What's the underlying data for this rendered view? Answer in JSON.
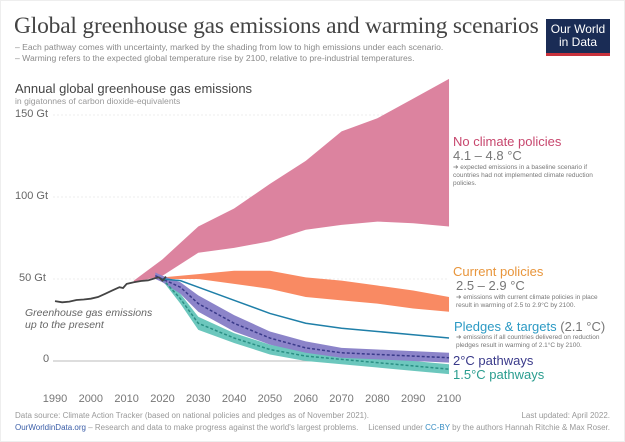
{
  "header": {
    "title": "Global greenhouse gas emissions and warming scenarios",
    "subtitle_1": "– Each pathway comes with uncertainty, marked by the shading from low to high emissions under each scenario.",
    "subtitle_2": "– Warming refers to the expected global temperature rise by 2100, relative to pre-industrial temperatures.",
    "logo_line1": "Our World",
    "logo_line2": "in Data"
  },
  "chart_data": {
    "type": "area",
    "ylabel": "Annual global greenhouse gas emissions",
    "yunit": "in gigatonnes of carbon dioxide-equivalents",
    "yticks": [
      "150 Gt",
      "100 Gt",
      "50 Gt",
      "0"
    ],
    "ytick_values": [
      150,
      100,
      50,
      0
    ],
    "xticks": [
      "1990",
      "2000",
      "2010",
      "2020",
      "2030",
      "2040",
      "2050",
      "2060",
      "2070",
      "2080",
      "2090",
      "2100"
    ],
    "xlim": [
      1990,
      2100
    ],
    "ylim": [
      -8,
      175
    ],
    "history": {
      "label": "Greenhouse gas emissions up to the present",
      "color": "#444444",
      "x": [
        1990,
        1992,
        1994,
        1996,
        1998,
        2000,
        2002,
        2004,
        2006,
        2008,
        2009,
        2010,
        2012,
        2014,
        2016,
        2018,
        2019,
        2020,
        2021
      ],
      "y": [
        36.5,
        35.8,
        36.2,
        37.2,
        37.5,
        38,
        39,
        41,
        43,
        45,
        44.5,
        47,
        48,
        48.8,
        49.2,
        50.5,
        51,
        49,
        51.5
      ]
    },
    "series": [
      {
        "name": "No climate policies",
        "temp": "4.1 – 4.8 °C",
        "note": "➔ expected emissions in a baseline scenario if countries had not implemented climate reduction policies.",
        "color": "#dc839f",
        "label_color": "#c7476e",
        "x": [
          2012,
          2020,
          2030,
          2040,
          2050,
          2060,
          2070,
          2080,
          2090,
          2100
        ],
        "high": [
          49,
          62,
          82,
          93,
          108,
          122,
          140,
          148,
          160,
          172
        ],
        "low": [
          48,
          52,
          66,
          69,
          73,
          80,
          83,
          85,
          84,
          82
        ]
      },
      {
        "name": "Current policies",
        "temp": "2.5 – 2.9 °C",
        "note": "➔ emissions with current climate policies in place result in warming of 2.5 to 2.9°C by 2100.",
        "color": "#f98a63",
        "label_color": "#e8953b",
        "x": [
          2020,
          2030,
          2040,
          2050,
          2060,
          2070,
          2080,
          2090,
          2100
        ],
        "high": [
          51,
          53,
          55,
          55,
          51,
          49,
          46,
          43,
          39
        ],
        "low": [
          50,
          50,
          47,
          44,
          39,
          37,
          35,
          32,
          30
        ]
      },
      {
        "name": "Pledges & targets",
        "temp": "(2.1 °C)",
        "note": "➔ emissions if all countries delivered on reduction pledges result in warming of 2.1°C by 2100.",
        "color": "#1f7fa8",
        "label_color": "#2c9ac4",
        "x": [
          2020,
          2025,
          2030,
          2040,
          2050,
          2060,
          2070,
          2080,
          2090,
          2100
        ],
        "y": [
          50,
          49,
          45,
          37,
          29,
          23,
          20,
          18,
          16,
          14
        ]
      },
      {
        "name": "2°C pathways",
        "color": "#8c84c9",
        "line_color": "#3a3a8a",
        "label_color": "#3a3a8a",
        "x": [
          2018,
          2020,
          2025,
          2030,
          2040,
          2050,
          2060,
          2070,
          2080,
          2090,
          2100
        ],
        "y": [
          52,
          50,
          45,
          35,
          23,
          14,
          8,
          5,
          4,
          3,
          2
        ],
        "high": [
          54,
          52,
          48,
          40,
          28,
          18,
          12,
          8,
          7,
          6,
          5
        ],
        "low": [
          50,
          48,
          41,
          30,
          18,
          10,
          5,
          2,
          1,
          0,
          -1
        ]
      },
      {
        "name": "1.5°C pathways",
        "color": "#6cc7bd",
        "line_color": "#2a8f84",
        "label_color": "#2a9d8f",
        "x": [
          2020,
          2025,
          2030,
          2040,
          2050,
          2060,
          2070,
          2080,
          2090,
          2100
        ],
        "y": [
          50,
          38,
          23,
          14,
          7,
          3,
          1,
          -1,
          -3,
          -5
        ],
        "high": [
          51,
          41,
          27,
          17,
          10,
          6,
          4,
          2,
          0,
          -2
        ],
        "low": [
          49,
          35,
          19,
          11,
          4,
          0,
          -2,
          -4,
          -6,
          -8
        ]
      }
    ]
  },
  "footer": {
    "source": "Data source: Climate Action Tracker (based on national policies and pledges as of November 2021).",
    "site": "OurWorldinData.org",
    "tagline": " – Research and data to make progress against the world's largest problems.",
    "updated": "Last updated: April 2022.",
    "license_pre": "Licensed under ",
    "license_link": "CC-BY",
    "license_post": " by the authors Hannah Ritchie & Max Roser."
  }
}
